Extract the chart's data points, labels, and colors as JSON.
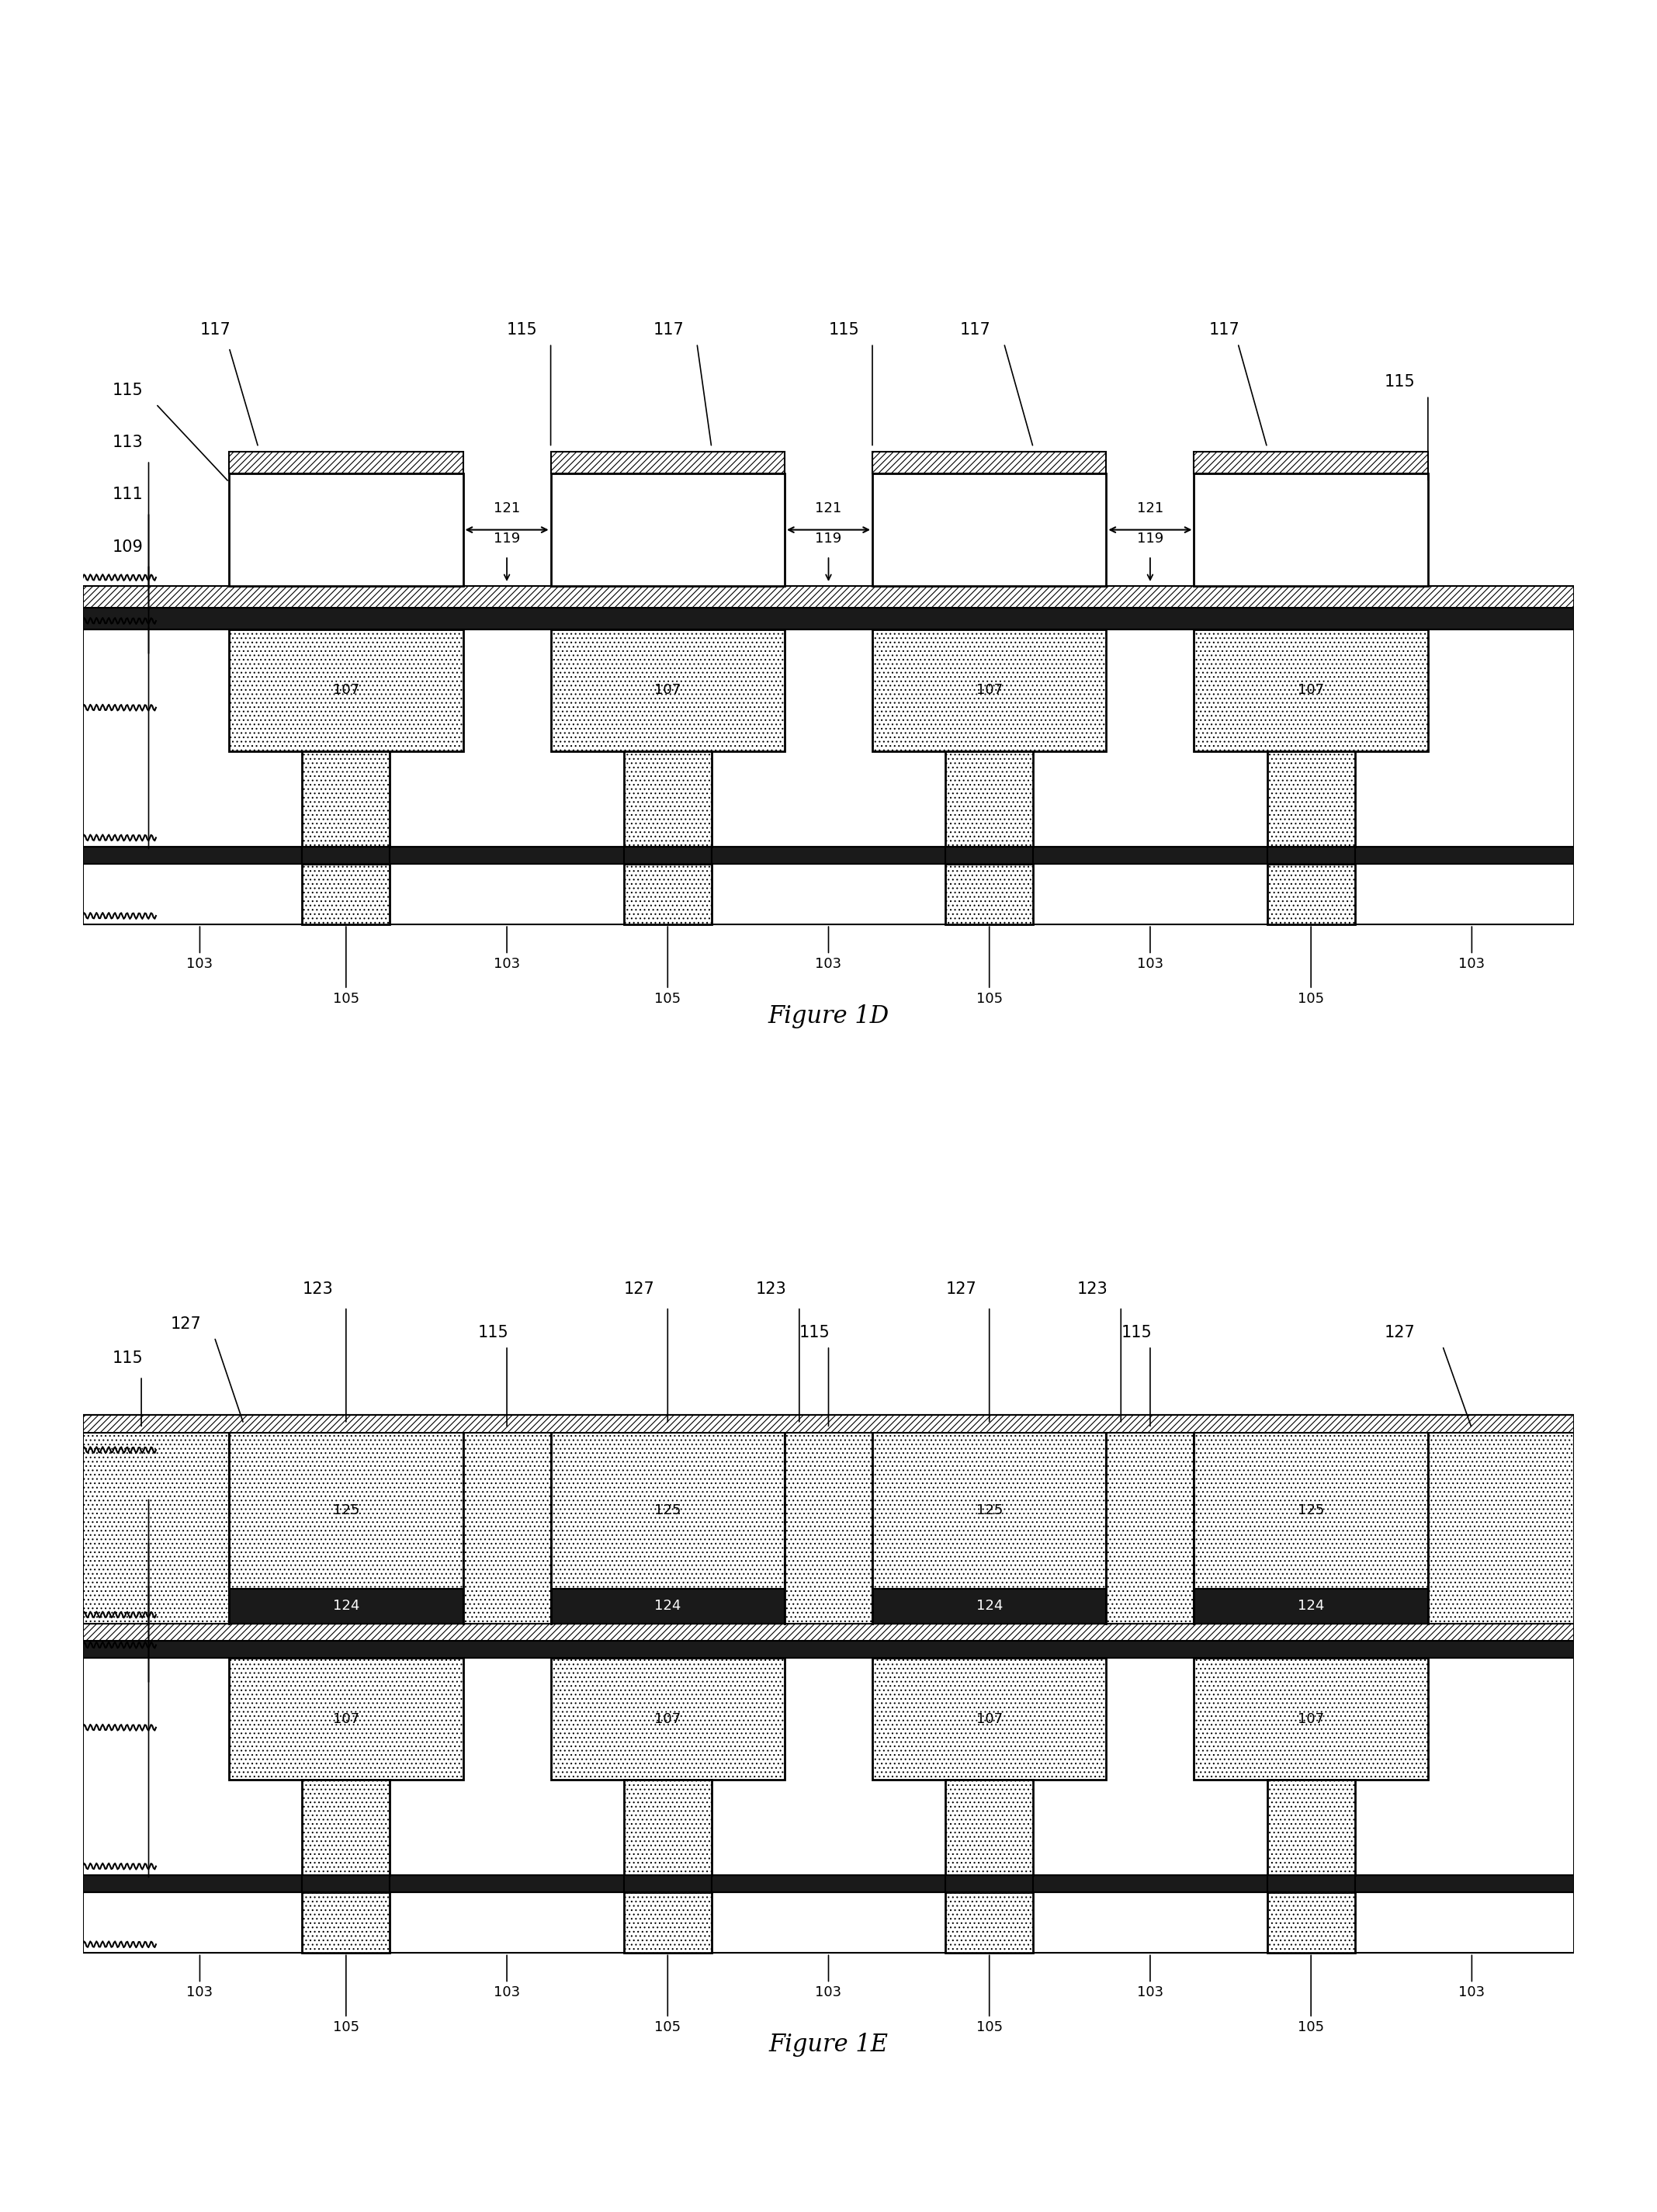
{
  "fig_width": 21.35,
  "fig_height": 28.5,
  "bg_color": "#ffffff",
  "t_centers": [
    18,
    40,
    62,
    84
  ],
  "t_wide": 16,
  "t_narrow": 6,
  "fig1d_title": "Figure 1D",
  "fig1e_title": "Figure 1E",
  "dark_color": "#1a1a1a",
  "mid_gray": "#666666",
  "light_gray": "#cccccc"
}
